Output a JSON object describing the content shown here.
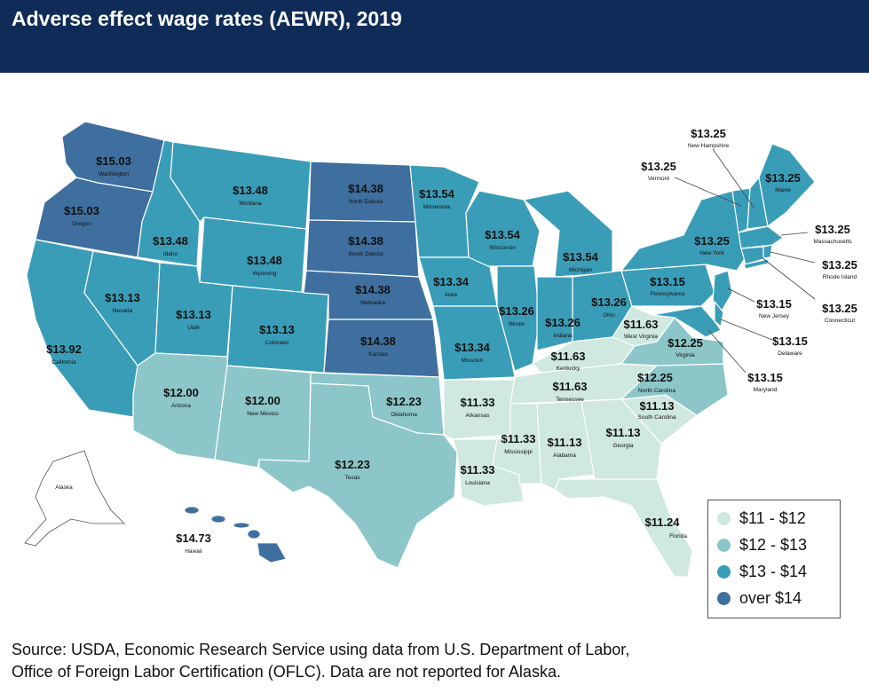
{
  "title": "Adverse effect wage rates (AEWR), 2019",
  "source": {
    "line1": "Source: USDA, Economic Research Service using data from U.S. Department of Labor,",
    "line2": "Office of Foreign Labor Certification (OFLC). Data are not reported for Alaska."
  },
  "legend": [
    {
      "label": "$11 - $12",
      "color": "#cfe8e0"
    },
    {
      "label": "$12 - $13",
      "color": "#8cc6c8"
    },
    {
      "label": "$13 - $14",
      "color": "#3a9db8"
    },
    {
      "label": "over $14",
      "color": "#3e6f9e"
    }
  ],
  "regions": [
    {
      "id": "washington",
      "name": "Washington",
      "value": "$15.03",
      "cls": "over $14"
    },
    {
      "id": "oregon",
      "name": "Oregon",
      "value": "$15.03",
      "cls": "over $14"
    },
    {
      "id": "california",
      "name": "California",
      "value": "$13.92",
      "cls": "$13 - $14"
    },
    {
      "id": "idaho",
      "name": "Idaho",
      "value": "$13.48",
      "cls": "$13 - $14"
    },
    {
      "id": "nevada",
      "name": "Nevada",
      "value": "$13.13",
      "cls": "$13 - $14"
    },
    {
      "id": "montana",
      "name": "Montana",
      "value": "$13.48",
      "cls": "$13 - $14"
    },
    {
      "id": "wyoming",
      "name": "Wyoming",
      "value": "$13.48",
      "cls": "$13 - $14"
    },
    {
      "id": "utah",
      "name": "Utah",
      "value": "$13.13",
      "cls": "$13 - $14"
    },
    {
      "id": "colorado",
      "name": "Colorado",
      "value": "$13.13",
      "cls": "$13 - $14"
    },
    {
      "id": "arizona",
      "name": "Arizona",
      "value": "$12.00",
      "cls": "$12 - $13"
    },
    {
      "id": "new-mexico",
      "name": "New Mexico",
      "value": "$12.00",
      "cls": "$12 - $13"
    },
    {
      "id": "north-dakota",
      "name": "North Dakota",
      "value": "$14.38",
      "cls": "over $14"
    },
    {
      "id": "south-dakota",
      "name": "South Dakota",
      "value": "$14.38",
      "cls": "over $14"
    },
    {
      "id": "nebraska",
      "name": "Nebraska",
      "value": "$14.38",
      "cls": "over $14"
    },
    {
      "id": "kansas",
      "name": "Kansas",
      "value": "$14.38",
      "cls": "over $14"
    },
    {
      "id": "oklahoma",
      "name": "Oklahoma",
      "value": "$12.23",
      "cls": "$12 - $13"
    },
    {
      "id": "texas",
      "name": "Texas",
      "value": "$12.23",
      "cls": "$12 - $13"
    },
    {
      "id": "minnesota",
      "name": "Minnesota",
      "value": "$13.54",
      "cls": "$13 - $14"
    },
    {
      "id": "iowa",
      "name": "Iowa",
      "value": "$13.34",
      "cls": "$13 - $14"
    },
    {
      "id": "missouri",
      "name": "Missouri",
      "value": "$13.34",
      "cls": "$13 - $14"
    },
    {
      "id": "arkansas",
      "name": "Arkansas",
      "value": "$11.33",
      "cls": "$11 - $12"
    },
    {
      "id": "louisiana",
      "name": "Louisiana",
      "value": "$11.33",
      "cls": "$11 - $12"
    },
    {
      "id": "wisconsin",
      "name": "Wisconsin",
      "value": "$13.54",
      "cls": "$13 - $14"
    },
    {
      "id": "illinois",
      "name": "Illinois",
      "value": "$13.26",
      "cls": "$13 - $14"
    },
    {
      "id": "michigan",
      "name": "Michigan",
      "value": "$13.54",
      "cls": "$13 - $14"
    },
    {
      "id": "indiana",
      "name": "Indiana",
      "value": "$13.26",
      "cls": "$13 - $14"
    },
    {
      "id": "ohio",
      "name": "Ohio",
      "value": "$13.26",
      "cls": "$13 - $14"
    },
    {
      "id": "kentucky",
      "name": "Kentucky",
      "value": "$11.63",
      "cls": "$11 - $12"
    },
    {
      "id": "tennessee",
      "name": "Tennessee",
      "value": "$11.63",
      "cls": "$11 - $12"
    },
    {
      "id": "mississippi",
      "name": "Mississippi",
      "value": "$11.33",
      "cls": "$11 - $12"
    },
    {
      "id": "alabama",
      "name": "Alabama",
      "value": "$11.13",
      "cls": "$11 - $12"
    },
    {
      "id": "georgia",
      "name": "Georgia",
      "value": "$11.13",
      "cls": "$11 - $12"
    },
    {
      "id": "florida",
      "name": "Florida",
      "value": "$11.24",
      "cls": "$11 - $12"
    },
    {
      "id": "south-carolina",
      "name": "South Carolina",
      "value": "$11.13",
      "cls": "$11 - $12"
    },
    {
      "id": "north-carolina",
      "name": "North Carolina",
      "value": "$12.25",
      "cls": "$12 - $13"
    },
    {
      "id": "virginia",
      "name": "Virginia",
      "value": "$12.25",
      "cls": "$12 - $13"
    },
    {
      "id": "west-virginia",
      "name": "West Virginia",
      "value": "$11.63",
      "cls": "$11 - $12"
    },
    {
      "id": "pennsylvania",
      "name": "Pennsylvania",
      "value": "$13.15",
      "cls": "$13 - $14"
    },
    {
      "id": "new-york",
      "name": "New York",
      "value": "$13.25",
      "cls": "$13 - $14"
    },
    {
      "id": "vermont",
      "name": "Vermont",
      "value": "$13.25",
      "cls": "$13 - $14"
    },
    {
      "id": "new-hampshire",
      "name": "New Hampshire",
      "value": "$13.25",
      "cls": "$13 - $14"
    },
    {
      "id": "maine",
      "name": "Maine",
      "value": "$13.25",
      "cls": "$13 - $14"
    },
    {
      "id": "massachusetts",
      "name": "Massachusetts",
      "value": "$13.25",
      "cls": "$13 - $14"
    },
    {
      "id": "rhode-island",
      "name": "Rhode Island",
      "value": "$13.25",
      "cls": "$13 - $14"
    },
    {
      "id": "connecticut",
      "name": "Connecticut",
      "value": "$13.25",
      "cls": "$13 - $14"
    },
    {
      "id": "new-jersey",
      "name": "New Jersey",
      "value": "$13.15",
      "cls": "$13 - $14"
    },
    {
      "id": "delaware",
      "name": "Delaware",
      "value": "$13.15",
      "cls": "$13 - $14"
    },
    {
      "id": "maryland",
      "name": "Maryland",
      "value": "$13.15",
      "cls": "$13 - $14"
    },
    {
      "id": "hawaii",
      "name": "Hawaii",
      "value": "$14.73",
      "cls": "over $14"
    },
    {
      "id": "alaska",
      "name": "Alaska",
      "value": "",
      "cls": "none"
    }
  ]
}
